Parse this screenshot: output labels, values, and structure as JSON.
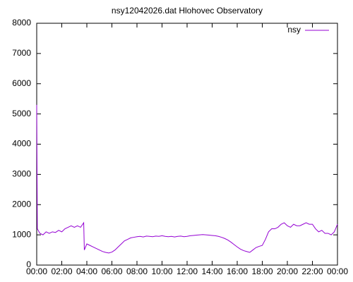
{
  "chart_data": {
    "type": "line",
    "title": "nsy12042026.dat Hlohovec Observatory",
    "x": [
      0,
      0.05,
      0.25,
      0.5,
      0.75,
      1,
      1.25,
      1.5,
      1.75,
      2,
      2.25,
      2.5,
      2.75,
      3,
      3.25,
      3.5,
      3.75,
      3.8,
      4,
      4.25,
      4.5,
      4.75,
      5,
      5.25,
      5.5,
      5.75,
      6,
      6.25,
      6.5,
      6.75,
      7,
      7.25,
      7.5,
      7.75,
      8,
      8.25,
      8.5,
      8.75,
      9,
      9.25,
      9.5,
      9.75,
      10,
      10.25,
      10.5,
      10.75,
      11,
      11.25,
      11.5,
      11.75,
      12,
      12.25,
      12.5,
      12.75,
      13,
      13.25,
      13.5,
      13.75,
      14,
      14.25,
      14.5,
      14.75,
      15,
      15.25,
      15.5,
      15.75,
      16,
      16.25,
      16.5,
      16.75,
      17,
      17.25,
      17.5,
      17.75,
      18,
      18.25,
      18.5,
      18.75,
      19,
      19.25,
      19.5,
      19.75,
      20,
      20.25,
      20.5,
      20.75,
      21,
      21.25,
      21.5,
      21.75,
      22,
      22.25,
      22.5,
      22.75,
      23,
      23.25,
      23.5,
      23.75,
      24
    ],
    "series": [
      {
        "name": "nsy",
        "color": "#9400d3",
        "values": [
          5300,
          1200,
          1050,
          1000,
          1100,
          1050,
          1100,
          1080,
          1150,
          1100,
          1200,
          1250,
          1300,
          1250,
          1300,
          1250,
          1400,
          500,
          700,
          650,
          600,
          550,
          500,
          450,
          420,
          400,
          430,
          500,
          600,
          700,
          800,
          850,
          900,
          920,
          940,
          950,
          930,
          960,
          950,
          940,
          960,
          950,
          970,
          950,
          940,
          950,
          930,
          950,
          960,
          940,
          950,
          970,
          980,
          990,
          1000,
          1010,
          1000,
          990,
          980,
          970,
          950,
          920,
          880,
          830,
          760,
          680,
          600,
          530,
          480,
          450,
          420,
          500,
          580,
          620,
          650,
          850,
          1100,
          1200,
          1200,
          1250,
          1350,
          1400,
          1300,
          1250,
          1350,
          1300,
          1300,
          1350,
          1400,
          1350,
          1350,
          1200,
          1100,
          1150,
          1050,
          1050,
          1000,
          1100,
          1350
        ]
      }
    ],
    "xlim": [
      0,
      24
    ],
    "xticks": [
      {
        "value": 0,
        "label": "00:00"
      },
      {
        "value": 2,
        "label": "02:00"
      },
      {
        "value": 4,
        "label": "04:00"
      },
      {
        "value": 6,
        "label": "06:00"
      },
      {
        "value": 8,
        "label": "08:00"
      },
      {
        "value": 10,
        "label": "10:00"
      },
      {
        "value": 12,
        "label": "12:00"
      },
      {
        "value": 14,
        "label": "14:00"
      },
      {
        "value": 16,
        "label": "16:00"
      },
      {
        "value": 18,
        "label": "18:00"
      },
      {
        "value": 20,
        "label": "20:00"
      },
      {
        "value": 22,
        "label": "22:00"
      },
      {
        "value": 24,
        "label": "00:00"
      }
    ],
    "ylim": [
      0,
      8000
    ],
    "yticks": [
      0,
      1000,
      2000,
      3000,
      4000,
      5000,
      6000,
      7000,
      8000
    ],
    "grid": false,
    "legend": "top-right"
  }
}
